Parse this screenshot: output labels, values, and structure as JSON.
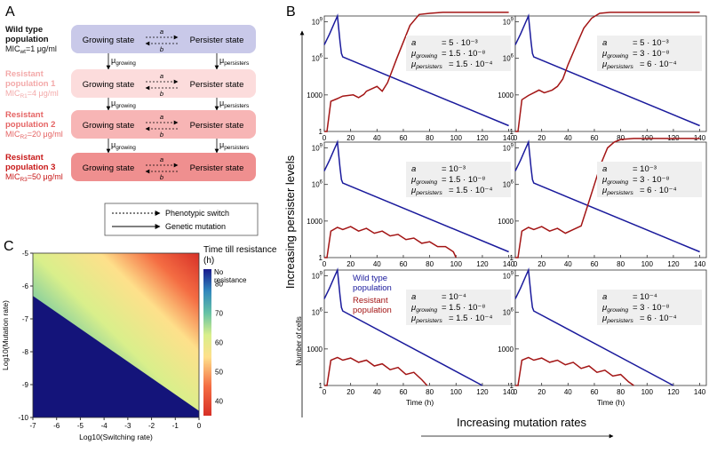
{
  "panel_letters": {
    "a": "A",
    "b": "B",
    "c": "C"
  },
  "panel_a": {
    "rows": [
      {
        "title1": "Wild type",
        "title2": "population",
        "mic_pre": "MIC",
        "mic_sub": "wt",
        "mic_post": "=1 μg/ml",
        "title_color": "#111111",
        "mic_color": "#111111",
        "box_color": "#c9c9e9"
      },
      {
        "title1": "Resistant",
        "title2": "population 1",
        "mic_pre": "MIC",
        "mic_sub": "R1",
        "mic_post": "=4 μg/ml",
        "title_color": "#f3a9a9",
        "mic_color": "#f3a9a9",
        "box_color": "#fcdcdc"
      },
      {
        "title1": "Resistant",
        "title2": "population 2",
        "mic_pre": "MIC",
        "mic_sub": "R2",
        "mic_post": "=20 μg/ml",
        "title_color": "#e56464",
        "mic_color": "#e56464",
        "box_color": "#f7b5b5"
      },
      {
        "title1": "Resistant",
        "title2": "population 3",
        "mic_pre": "MIC",
        "mic_sub": "R3",
        "mic_post": "=50 μg/ml",
        "title_color": "#c81818",
        "mic_color": "#c81818",
        "box_color": "#ef8f8f"
      }
    ],
    "growing_state": "Growing state",
    "persister_state": "Persister state",
    "rate_a": "a",
    "rate_b": "b",
    "mu": "μ",
    "mu_growing_sub": "growing",
    "mu_persisters_sub": "persisters",
    "legend": {
      "switch": "Phenotypic switch",
      "mutation": "Genetic mutation"
    }
  },
  "panel_b": {
    "y_arrow_label": "Increasing persister levels",
    "x_arrow_label": "Increasing mutation rates",
    "ylabel": "Number of cells",
    "xlabel": "Time (h)",
    "legend_wt": [
      "Wild type",
      "population"
    ],
    "legend_res": [
      "Resistant",
      "population"
    ],
    "colors": {
      "wild_type": "#1a1a9c",
      "resistant": "#a31515"
    },
    "ytick_1e9": "10",
    "ytick_1e9_exp": "9",
    "ytick_1e6": "10",
    "ytick_1e6_exp": "6",
    "ytick_1000": "1000",
    "ytick_1": "1",
    "xticks": [
      "0",
      "20",
      "40",
      "60",
      "80",
      "100",
      "120",
      "140"
    ]
  },
  "chart_data": [
    {
      "type": "line",
      "panel": "B-1",
      "x_range": [
        0,
        145
      ],
      "y_range": [
        1,
        3000000000.0
      ],
      "y_scale": "log",
      "params": {
        "a": "5 · 10⁻³",
        "mu_growing": "1.5 · 10⁻⁸",
        "mu_persisters": "1.5 · 10⁻⁴"
      },
      "series": [
        {
          "name": "Wild type population",
          "x": [
            0,
            4,
            8,
            10,
            12,
            13,
            14,
            140
          ],
          "y": [
            13000000.0,
            100000000.0,
            1000000000.0,
            3000000000.0,
            20000000.0,
            2500000.0,
            1300000.0,
            3
          ]
        },
        {
          "name": "Resistant population",
          "x": [
            0,
            2,
            5,
            10,
            14,
            22,
            26,
            30,
            32,
            40,
            44,
            48,
            55,
            65,
            72,
            80,
            90,
            100,
            110,
            120,
            130,
            140
          ],
          "y": [
            1,
            1,
            300,
            500,
            800,
            1000,
            600,
            1100,
            2000,
            5000,
            2000,
            10000,
            1000000.0,
            500000000.0,
            4000000000.0,
            5000000000.0,
            6000000000.0,
            6000000000.0,
            6000000000.0,
            6000000000.0,
            6000000000.0,
            6000000000.0
          ]
        }
      ]
    },
    {
      "type": "line",
      "panel": "B-2",
      "x_range": [
        0,
        145
      ],
      "y_range": [
        1,
        3000000000.0
      ],
      "y_scale": "log",
      "params": {
        "a": "5 · 10⁻³",
        "mu_growing": "3 · 10⁻⁸",
        "mu_persisters": "6 · 10⁻⁴"
      },
      "series": [
        {
          "name": "Wild type population",
          "x": [
            0,
            4,
            8,
            10,
            12,
            13,
            14,
            140
          ],
          "y": [
            13000000.0,
            100000000.0,
            1000000000.0,
            3000000000.0,
            20000000.0,
            2500000.0,
            1300000.0,
            3
          ]
        },
        {
          "name": "Resistant population",
          "x": [
            0,
            2,
            5,
            10,
            14,
            18,
            22,
            28,
            32,
            36,
            40,
            46,
            52,
            58,
            64,
            72,
            80,
            90,
            100,
            110,
            120,
            130,
            140
          ],
          "y": [
            1,
            1,
            400,
            900,
            1500,
            2500,
            1500,
            2500,
            5000,
            20000.0,
            300000.0,
            10000000.0,
            300000000.0,
            2000000000.0,
            5000000000.0,
            6000000000.0,
            6000000000.0,
            6000000000.0,
            6000000000.0,
            6000000000.0,
            6000000000.0,
            6000000000.0,
            6000000000.0
          ]
        }
      ]
    },
    {
      "type": "line",
      "panel": "B-3",
      "x_range": [
        0,
        145
      ],
      "y_range": [
        1,
        3000000000.0
      ],
      "y_scale": "log",
      "params": {
        "a": "10⁻³",
        "mu_growing": "1.5 · 10⁻⁸",
        "mu_persisters": "1.5 · 10⁻⁴"
      },
      "series": [
        {
          "name": "Wild type population",
          "x": [
            0,
            4,
            8,
            10,
            12,
            13,
            14,
            140
          ],
          "y": [
            13000000.0,
            100000000.0,
            1000000000.0,
            3000000000.0,
            20000000.0,
            2500000.0,
            1300000.0,
            3
          ]
        },
        {
          "name": "Resistant population",
          "x": [
            0,
            2,
            5,
            10,
            14,
            20,
            26,
            32,
            38,
            44,
            50,
            56,
            62,
            68,
            74,
            80,
            86,
            92,
            98,
            100
          ],
          "y": [
            1,
            1,
            150,
            300,
            200,
            350,
            150,
            250,
            100,
            150,
            60,
            80,
            30,
            40,
            15,
            20,
            8,
            8,
            3,
            1
          ]
        }
      ]
    },
    {
      "type": "line",
      "panel": "B-4",
      "x_range": [
        0,
        145
      ],
      "y_range": [
        1,
        3000000000.0
      ],
      "y_scale": "log",
      "params": {
        "a": "10⁻³",
        "mu_growing": "3 · 10⁻⁸",
        "mu_persisters": "6 · 10⁻⁴"
      },
      "series": [
        {
          "name": "Wild type population",
          "x": [
            0,
            4,
            8,
            10,
            12,
            13,
            14,
            140
          ],
          "y": [
            13000000.0,
            100000000.0,
            1000000000.0,
            3000000000.0,
            20000000.0,
            2500000.0,
            1300000.0,
            3
          ]
        },
        {
          "name": "Resistant population",
          "x": [
            0,
            2,
            5,
            10,
            14,
            20,
            26,
            32,
            38,
            44,
            50,
            55,
            60,
            65,
            70,
            75,
            80,
            90,
            100,
            110,
            120,
            130,
            140
          ],
          "y": [
            1,
            1,
            150,
            300,
            200,
            350,
            150,
            250,
            100,
            200,
            400,
            20000.0,
            1000000.0,
            50000000.0,
            1000000000.0,
            3000000000.0,
            5000000000.0,
            6000000000.0,
            6000000000.0,
            6000000000.0,
            6000000000.0,
            6000000000.0,
            6000000000.0
          ]
        }
      ]
    },
    {
      "type": "line",
      "panel": "B-5",
      "x_range": [
        0,
        145
      ],
      "y_range": [
        1,
        3000000000.0
      ],
      "y_scale": "log",
      "params": {
        "a": "10⁻⁴",
        "mu_growing": "1.5 · 10⁻⁸",
        "mu_persisters": "1.5 · 10⁻⁴"
      },
      "series": [
        {
          "name": "Wild type population",
          "x": [
            0,
            4,
            8,
            10,
            12,
            13,
            14,
            120
          ],
          "y": [
            13000000.0,
            100000000.0,
            1000000000.0,
            3000000000.0,
            20000000.0,
            2500000.0,
            1300000.0,
            1
          ]
        },
        {
          "name": "Resistant population",
          "x": [
            0,
            2,
            5,
            10,
            14,
            20,
            26,
            32,
            38,
            44,
            50,
            56,
            62,
            68,
            74,
            78
          ],
          "y": [
            1,
            1,
            120,
            200,
            120,
            180,
            80,
            120,
            40,
            60,
            20,
            30,
            8,
            12,
            3,
            1
          ]
        }
      ]
    },
    {
      "type": "line",
      "panel": "B-6",
      "x_range": [
        0,
        145
      ],
      "y_range": [
        1,
        3000000000.0
      ],
      "y_scale": "log",
      "params": {
        "a": "10⁻⁴",
        "mu_growing": "3 · 10⁻⁸",
        "mu_persisters": "6 · 10⁻⁴"
      },
      "series": [
        {
          "name": "Wild type population",
          "x": [
            0,
            4,
            8,
            10,
            12,
            13,
            14,
            120
          ],
          "y": [
            13000000.0,
            100000000.0,
            1000000000.0,
            3000000000.0,
            20000000.0,
            2500000.0,
            1300000.0,
            1
          ]
        },
        {
          "name": "Resistant population",
          "x": [
            0,
            2,
            5,
            10,
            14,
            20,
            26,
            32,
            38,
            44,
            50,
            56,
            62,
            68,
            74,
            80,
            86,
            90
          ],
          "y": [
            1,
            1,
            120,
            200,
            120,
            180,
            80,
            120,
            50,
            80,
            25,
            40,
            12,
            18,
            6,
            8,
            2,
            1
          ]
        }
      ]
    },
    {
      "type": "heatmap",
      "panel": "C",
      "title": "Time till resistance (h)",
      "xlabel": "Log10(Switching rate)",
      "ylabel": "Log10(Mutation rate)",
      "xlim": [
        -7,
        0
      ],
      "ylim": [
        -10,
        -5
      ],
      "xticks": [
        "-7",
        "-6",
        "-5",
        "-4",
        "-3",
        "-2",
        "-1",
        "0"
      ],
      "yticks": [
        "-5",
        "-6",
        "-7",
        "-8",
        "-9",
        "-10"
      ],
      "colorbar_label_top": "No",
      "colorbar_label_top2": "resistance",
      "colorbar_ticks": [
        "80",
        "70",
        "60",
        "50",
        "40"
      ],
      "no_resistance_boundary": {
        "x": [
          -7,
          0
        ],
        "y": [
          -6.3,
          -9.8
        ]
      },
      "value_range": [
        35,
        85
      ]
    }
  ]
}
